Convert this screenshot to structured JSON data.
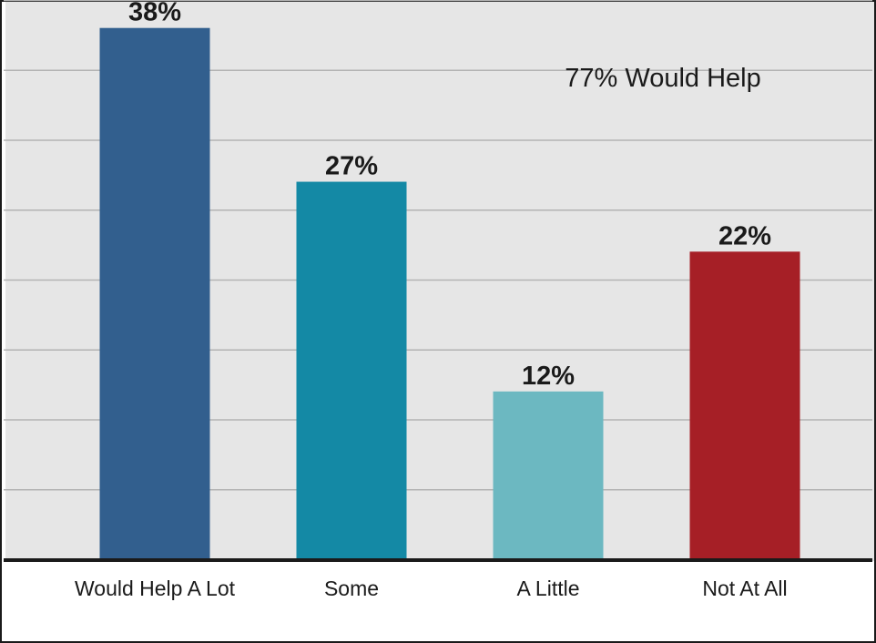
{
  "chart_data": {
    "type": "bar",
    "categories": [
      "Would Help A Lot",
      "Some",
      "A Little",
      "Not At All"
    ],
    "values": [
      38,
      27,
      12,
      22
    ],
    "value_labels": [
      "38%",
      "27%",
      "12%",
      "22%"
    ],
    "colors": [
      "#325f8e",
      "#1489a5",
      "#6cb8c1",
      "#a61f26"
    ],
    "annotation": "77% Would Help",
    "ylim": [
      0,
      40
    ],
    "grid": true,
    "grid_color": "#b3b3b3",
    "background": "#e6e6e6",
    "axis_color": "#1a1a1a"
  }
}
